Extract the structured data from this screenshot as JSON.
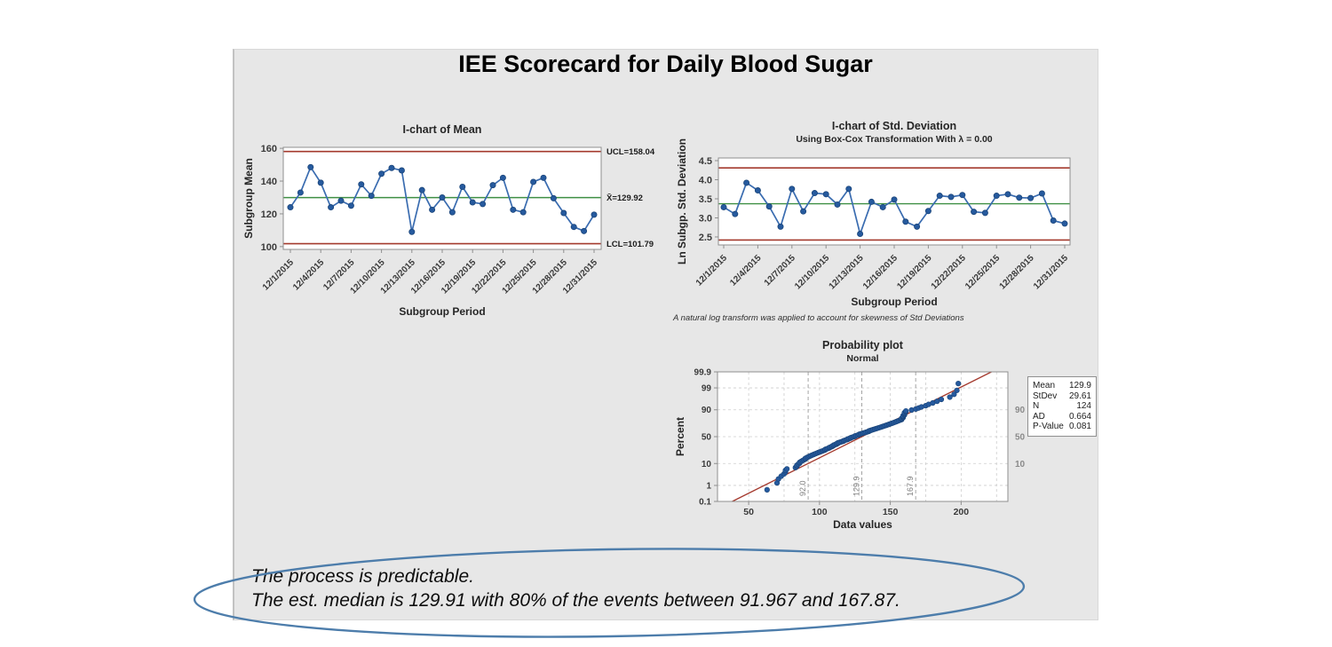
{
  "page": {
    "title": "IEE Scorecard for Daily Blood Sugar"
  },
  "annotation": {
    "line1": "The process is predictable.",
    "line2": "The est. median is 129.91 with 80% of the events between 91.967 and 167.87."
  },
  "colors": {
    "panel_bg": "#e7e7e7",
    "limit_red": "#a43a2e",
    "center_green": "#3f8f44",
    "series_line": "#3a6cb0",
    "series_marker": "#265a9e",
    "series_marker_edge": "#1b4579",
    "fit_red": "#a43a2e",
    "grid": "#cdcdcd",
    "refline": "#9b9b9b",
    "ref_text": "#7e7e7e",
    "frame": "#8f8f8f",
    "tick_text": "#3a3a3a",
    "title_text": "#262626",
    "right_tick_text": "#8a8a8a",
    "ellipse_blue": "#4d7dab"
  },
  "chart_data": [
    {
      "id": "mean_ichart",
      "type": "line",
      "title": "I-chart of Mean",
      "ylabel": "Subgroup Mean",
      "xlabel": "Subgroup Period",
      "yticks": [
        100,
        120,
        140,
        160
      ],
      "ylim": [
        98.3,
        160.6
      ],
      "xtick_labels": [
        "12/1/2015",
        "12/4/2015",
        "12/7/2015",
        "12/10/2015",
        "12/13/2015",
        "12/16/2015",
        "12/19/2015",
        "12/22/2015",
        "12/25/2015",
        "12/28/2015",
        "12/31/2015"
      ],
      "xtick_positions": [
        1,
        4,
        7,
        10,
        13,
        16,
        19,
        22,
        25,
        28,
        31
      ],
      "ucl_value": 158.04,
      "ucl_label": "UCL=158.04",
      "center_value": 129.92,
      "center_label": "X̄=129.92",
      "lcl_value": 101.79,
      "lcl_label": "LCL=101.79",
      "values": [
        124,
        133,
        148.5,
        139,
        124,
        128,
        125,
        138,
        131,
        144.5,
        148,
        146.5,
        109,
        134.5,
        122.5,
        130,
        121,
        136.5,
        127,
        126,
        137.5,
        142,
        122.5,
        121,
        139.5,
        142,
        129.5,
        120.5,
        112,
        109.5,
        119.5
      ]
    },
    {
      "id": "std_ichart",
      "type": "line",
      "title": "I-chart of Std. Deviation",
      "subtitle": "Using Box-Cox Transformation With λ = 0.00",
      "ylabel": "Ln Subgp. Std. Deviation",
      "xlabel": "Subgroup Period",
      "footnote": "A natural log transform was applied to account for skewness of Std Deviations",
      "yticks": [
        2.5,
        3.0,
        3.5,
        4.0,
        4.5
      ],
      "ylim": [
        2.29,
        4.57
      ],
      "xtick_labels": [
        "12/1/2015",
        "12/4/2015",
        "12/7/2015",
        "12/10/2015",
        "12/13/2015",
        "12/16/2015",
        "12/19/2015",
        "12/22/2015",
        "12/25/2015",
        "12/28/2015",
        "12/31/2015"
      ],
      "xtick_positions": [
        1,
        4,
        7,
        10,
        13,
        16,
        19,
        22,
        25,
        28,
        31
      ],
      "ucl_value": 4.31,
      "center_value": 3.37,
      "lcl_value": 2.42,
      "values": [
        3.28,
        3.1,
        3.92,
        3.72,
        3.3,
        2.77,
        3.76,
        3.17,
        3.65,
        3.62,
        3.35,
        3.76,
        2.58,
        3.42,
        3.28,
        3.48,
        2.9,
        2.77,
        3.18,
        3.58,
        3.55,
        3.6,
        3.16,
        3.13,
        3.58,
        3.62,
        3.53,
        3.52,
        3.64,
        2.93,
        2.85
      ]
    },
    {
      "id": "prob_plot",
      "type": "scatter",
      "title": "Probability plot",
      "subtitle": "Normal",
      "ylabel": "Percent",
      "xlabel": "Data values",
      "ytick_labels": [
        "0.1",
        "1",
        "10",
        "50",
        "90",
        "99",
        "99.9"
      ],
      "ytick_values": [
        0.1,
        1,
        10,
        50,
        90,
        99,
        99.9
      ],
      "right_ytick_labels": [
        "90",
        "50",
        "10"
      ],
      "right_ytick_values": [
        90,
        50,
        10
      ],
      "xticks": [
        50,
        100,
        150,
        200
      ],
      "xlim": [
        28,
        233
      ],
      "grid_x_start": 50,
      "grid_x_step": 25,
      "grid_x_end": 225,
      "grid_y_percents": [
        1,
        10,
        50,
        90,
        99
      ],
      "ref_lines": [
        {
          "value": 92.0,
          "label": "92.0"
        },
        {
          "value": 129.9,
          "label": "129.9"
        },
        {
          "value": 167.9,
          "label": "167.9"
        }
      ],
      "fit": {
        "mean": 129.9,
        "stdev": 29.61
      },
      "n": 124,
      "sorted_values": [
        63,
        70,
        71,
        73,
        75,
        76,
        76,
        77,
        83,
        84,
        84,
        85,
        86,
        86,
        87,
        88,
        89,
        90,
        90,
        91,
        92,
        93,
        94,
        95,
        96,
        97,
        98,
        99,
        100,
        101,
        102,
        103,
        104,
        104,
        105,
        106,
        107,
        107,
        108,
        109,
        109,
        110,
        110,
        111,
        112,
        112,
        113,
        113,
        114,
        115,
        116,
        117,
        117,
        118,
        119,
        120,
        120,
        121,
        122,
        122,
        123,
        124,
        125,
        125,
        126,
        127,
        128,
        128,
        129,
        130,
        131,
        132,
        133,
        134,
        135,
        135,
        136,
        137,
        138,
        139,
        140,
        141,
        142,
        143,
        144,
        145,
        146,
        147,
        148,
        149,
        150,
        151,
        152,
        153,
        154,
        155,
        156,
        157,
        158,
        158,
        158,
        159,
        159,
        159,
        159,
        160,
        160,
        160,
        160,
        161,
        161,
        165,
        168,
        170,
        172,
        175,
        177,
        180,
        183,
        186,
        192,
        195,
        197,
        198
      ],
      "stats": {
        "rows": [
          {
            "label": "Mean",
            "value": "129.9"
          },
          {
            "label": "StDev",
            "value": "29.61"
          },
          {
            "label": "N",
            "value": "124"
          },
          {
            "label": "AD",
            "value": "0.664"
          },
          {
            "label": "P-Value",
            "value": "0.081"
          }
        ]
      }
    }
  ]
}
